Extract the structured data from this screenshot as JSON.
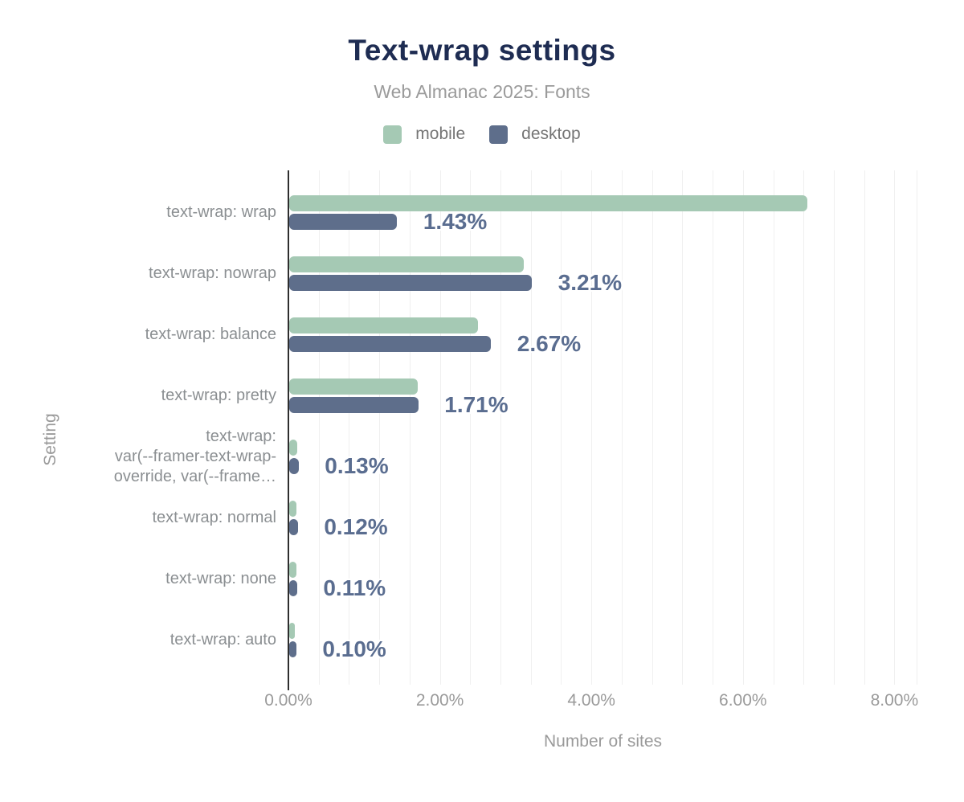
{
  "header": {
    "title": "Text-wrap settings",
    "subtitle": "Web Almanac 2025: Fonts"
  },
  "legend": {
    "items": [
      {
        "label": "mobile",
        "color": "#a5c9b4"
      },
      {
        "label": "desktop",
        "color": "#5e6e8b"
      }
    ]
  },
  "axes": {
    "x_title": "Number of sites",
    "y_title": "Setting",
    "x_ticks": [
      {
        "value": 0,
        "label": "0.00%"
      },
      {
        "value": 2,
        "label": "2.00%"
      },
      {
        "value": 4,
        "label": "4.00%"
      },
      {
        "value": 6,
        "label": "6.00%"
      },
      {
        "value": 8,
        "label": "8.00%"
      }
    ]
  },
  "chart_data": {
    "type": "bar",
    "orientation": "horizontal",
    "title": "Text-wrap settings",
    "subtitle": "Web Almanac 2025: Fonts",
    "xlabel": "Number of sites",
    "ylabel": "Setting",
    "xlim": [
      0,
      8.3
    ],
    "grid": true,
    "minor_grid_step_pct": 0.4,
    "legend_position": "top",
    "categories": [
      "text-wrap: wrap",
      "text-wrap: nowrap",
      "text-wrap: balance",
      "text-wrap: pretty",
      "text-wrap: var(--framer-text-wrap-override, var(--frame…",
      "text-wrap: normal",
      "text-wrap: none",
      "text-wrap: auto"
    ],
    "category_display_lines": [
      [
        "text-wrap: wrap"
      ],
      [
        "text-wrap: nowrap"
      ],
      [
        "text-wrap: balance"
      ],
      [
        "text-wrap: pretty"
      ],
      [
        "text-wrap:",
        "var(--framer-text-wrap-",
        "override, var(--frame…"
      ],
      [
        "text-wrap: normal"
      ],
      [
        "text-wrap: none"
      ],
      [
        "text-wrap: auto"
      ]
    ],
    "series": [
      {
        "name": "mobile",
        "color": "#a5c9b4",
        "values_pct": [
          6.85,
          3.1,
          2.5,
          1.7,
          0.11,
          0.1,
          0.1,
          0.08
        ],
        "estimated": true
      },
      {
        "name": "desktop",
        "color": "#5e6e8b",
        "values_pct": [
          1.43,
          3.21,
          2.67,
          1.71,
          0.13,
          0.12,
          0.11,
          0.1
        ],
        "estimated": false
      }
    ],
    "data_labels": {
      "series": "desktop",
      "values": [
        "1.43%",
        "3.21%",
        "2.67%",
        "1.71%",
        "0.13%",
        "0.12%",
        "0.11%",
        "0.10%"
      ]
    }
  },
  "colors": {
    "background": "#ffffff",
    "title": "#1e2c52",
    "subtitle": "#9b9b9b",
    "axis_text": "#9a9a9a",
    "category_text": "#8b8f92",
    "value_label": "#5a6d90",
    "axis_line": "#2e2e2e",
    "gridline": "#f0f0f0",
    "mobile": "#a5c9b4",
    "desktop": "#5e6e8b"
  }
}
